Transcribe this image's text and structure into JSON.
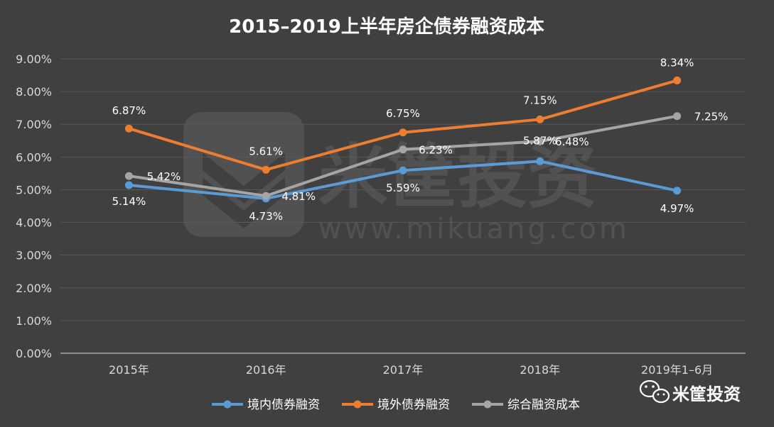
{
  "chart_data": {
    "type": "line",
    "title": "2015–2019上半年房企债券融资成本",
    "categories": [
      "2015年",
      "2016年",
      "2017年",
      "2018年",
      "2019年1–6月"
    ],
    "y_ticks": [
      "0.00%",
      "1.00%",
      "2.00%",
      "3.00%",
      "4.00%",
      "5.00%",
      "6.00%",
      "7.00%",
      "8.00%",
      "9.00%"
    ],
    "ylim": [
      0,
      9
    ],
    "grid": true,
    "legend_position": "bottom",
    "series": [
      {
        "name": "境内债券融资",
        "color": "#5B9BD5",
        "values": [
          5.14,
          4.73,
          5.59,
          5.87,
          4.97
        ],
        "labels": [
          "5.14%",
          "4.73%",
          "5.59%",
          "5.87%",
          "4.97%"
        ]
      },
      {
        "name": "境外债券融资",
        "color": "#ED7D31",
        "values": [
          6.87,
          5.61,
          6.75,
          7.15,
          8.34
        ],
        "labels": [
          "6.87%",
          "5.61%",
          "6.75%",
          "7.15%",
          "8.34%"
        ]
      },
      {
        "name": "综合融资成本",
        "color": "#A5A5A5",
        "values": [
          5.42,
          4.81,
          6.23,
          6.48,
          7.25
        ],
        "labels": [
          "5.42%",
          "4.81%",
          "6.23%",
          "6.48%",
          "7.25%"
        ]
      }
    ]
  },
  "watermark": {
    "brand": "米筐投资",
    "url": "www.mikuang.com"
  },
  "badge": {
    "icon": "wechat-icon",
    "label": "米筐投资"
  }
}
